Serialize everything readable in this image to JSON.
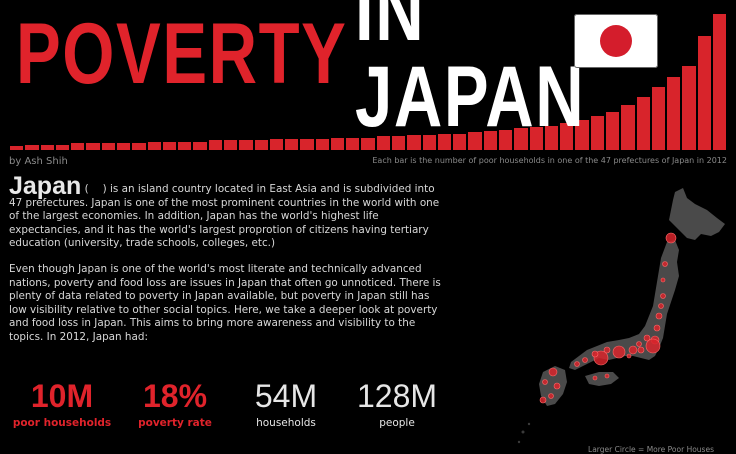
{
  "header": {
    "title_part1": "POVERTY",
    "title_part2": "IN JAPAN",
    "byline": "by Ash Shih",
    "bars_caption": "Each bar is the number of poor households in one of the 47 prefectures of Japan in 2012"
  },
  "colors": {
    "accent_red": "#e0232b",
    "background": "#000000"
  },
  "intro": {
    "country": "Japan",
    "paragraph1": ") is an island country located in East Asia and is subdivided into 47 prefectures. Japan is one of the most prominent countries in the world with one of the largest economies. In addition, Japan has the world's highest life expectancies, and it has the world's largest proprotion of citizens having tertiary education (university, trade schools, colleges, etc.)",
    "paragraph1_open": "(",
    "paragraph2": "Even though Japan is one of the world's most literate and technically advanced nations, poverty and food loss are issues in Japan that often go unnoticed. There is plenty of data related to poverty in Japan available, but poverty in Japan still has low visibility relative to other social topics. Here, we take a deeper look at poverty and food loss in Japan. This aims to bring more awareness and visibility to the topics. In 2012, Japan had:"
  },
  "stats": [
    {
      "value": "10M",
      "label": "poor households"
    },
    {
      "value": "18%",
      "label": "poverty rate"
    },
    {
      "value": "54M",
      "label": "households"
    },
    {
      "value": "128M",
      "label": "people"
    }
  ],
  "map": {
    "legend": "Larger Circle = More Poor Houses"
  },
  "chart_data": {
    "type": "bar",
    "series": [
      {
        "values": [
          3,
          4,
          4,
          4,
          5,
          5,
          5,
          5,
          5,
          6,
          6,
          6,
          6,
          7,
          7,
          7,
          7,
          8,
          8,
          8,
          8,
          9,
          9,
          9,
          10,
          10,
          11,
          11,
          12,
          12,
          13,
          14,
          15,
          16,
          17,
          18,
          20,
          22,
          25,
          28,
          33,
          39,
          46,
          54,
          62,
          84,
          100
        ]
      }
    ]
  }
}
